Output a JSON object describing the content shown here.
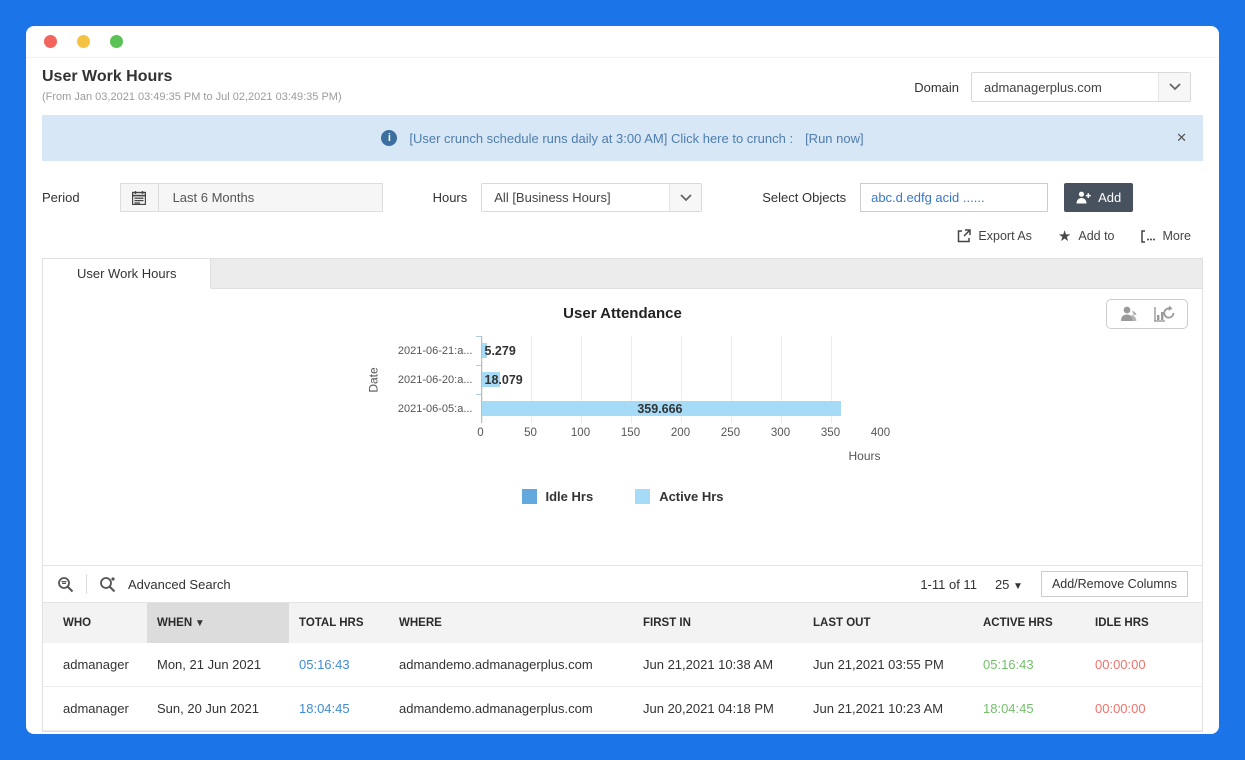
{
  "header": {
    "title": "User Work Hours",
    "subtitle": "(From Jan 03,2021 03:49:35 PM to Jul 02,2021 03:49:35 PM)",
    "domain_label": "Domain",
    "domain_value": "admanagerplus.com"
  },
  "banner": {
    "text": "[User crunch schedule runs daily at 3:00 AM] Click here to crunch :",
    "run_now": "[Run now]",
    "close": "✕"
  },
  "filters": {
    "period_label": "Period",
    "period_value": "Last 6 Months",
    "hours_label": "Hours",
    "hours_value": "All [Business Hours]",
    "select_objects_label": "Select Objects",
    "select_objects_value": "abc.d.edfg acid ......",
    "add_button": "Add"
  },
  "actions": {
    "export_as": "Export As",
    "add_to": "Add to",
    "more": "More"
  },
  "tab": {
    "label": "User Work Hours"
  },
  "chart_data": {
    "type": "bar",
    "orientation": "horizontal",
    "title": "User Attendance",
    "categories": [
      "2021-06-21:a...",
      "2021-06-20:a...",
      "2021-06-05:a..."
    ],
    "values": [
      5.279,
      18.079,
      359.666
    ],
    "value_labels": [
      "5.279",
      "18.079",
      "359.666"
    ],
    "xlabel": "Hours",
    "ylabel": "Date",
    "xlim": [
      0,
      400
    ],
    "xticks": [
      0,
      50,
      100,
      150,
      200,
      250,
      300,
      350,
      400
    ],
    "grid": true,
    "bar_color": "#a6dbf7",
    "legend_position": "bottom",
    "legend": [
      {
        "label": "Idle Hrs",
        "color": "#64a9dd"
      },
      {
        "label": "Active Hrs",
        "color": "#a6dbf7"
      }
    ]
  },
  "table": {
    "advanced_search_label": "Advanced Search",
    "pagination": "1-11 of 11",
    "page_size": "25",
    "add_remove_columns": "Add/Remove Columns",
    "columns": [
      {
        "label": "WHO",
        "key": "who"
      },
      {
        "label": "WHEN",
        "key": "when",
        "sorted": true
      },
      {
        "label": "TOTAL HRS",
        "key": "total_hrs"
      },
      {
        "label": "WHERE",
        "key": "where"
      },
      {
        "label": "FIRST IN",
        "key": "first_in"
      },
      {
        "label": "LAST OUT",
        "key": "last_out"
      },
      {
        "label": "ACTIVE HRS",
        "key": "active_hrs"
      },
      {
        "label": "IDLE HRS",
        "key": "idle_hrs"
      }
    ],
    "rows": [
      {
        "who": "admanager",
        "when": "Mon, 21 Jun 2021",
        "total_hrs": "05:16:43",
        "where": "admandemo.admanagerplus.com",
        "first_in": "Jun 21,2021 10:38 AM",
        "last_out": "Jun 21,2021 03:55 PM",
        "active_hrs": "05:16:43",
        "idle_hrs": "00:00:00"
      },
      {
        "who": "admanager",
        "when": "Sun, 20 Jun 2021",
        "total_hrs": "18:04:45",
        "where": "admandemo.admanagerplus.com",
        "first_in": "Jun 20,2021 04:18 PM",
        "last_out": "Jun 21,2021 10:23 AM",
        "active_hrs": "18:04:45",
        "idle_hrs": "00:00:00"
      }
    ]
  },
  "colors": {
    "frame_accent": "#1b75e8",
    "banner_bg": "#d7e7f6",
    "banner_text": "#4f7dad",
    "add_button_bg": "#47525e",
    "total_hrs_text": "#3f8cd5",
    "active_hrs_text": "#74c06c",
    "idle_hrs_text": "#f0736b",
    "idle_legend": "#64a9dd",
    "active_legend": "#a6dbf7"
  }
}
